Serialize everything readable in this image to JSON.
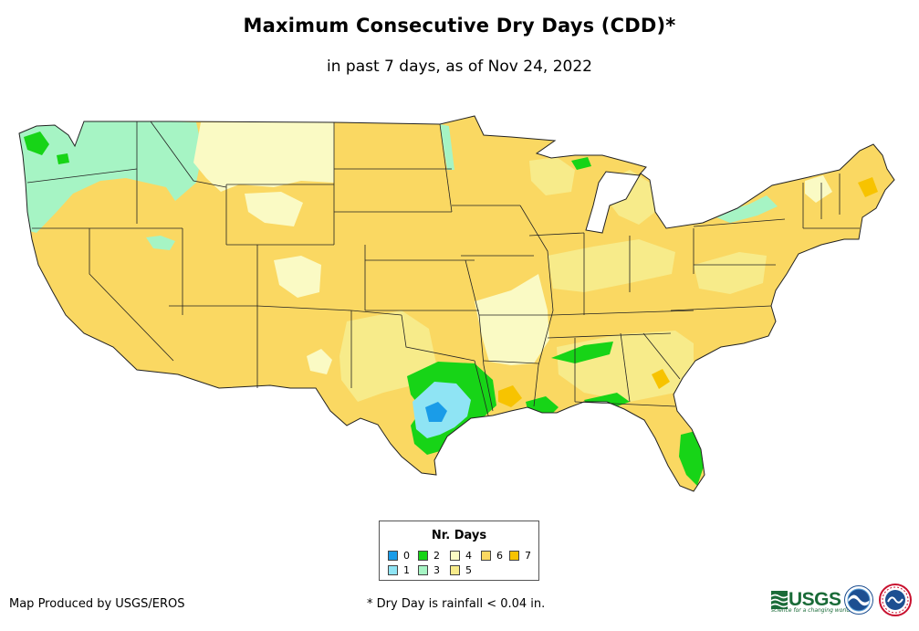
{
  "title": "Maximum Consecutive Dry Days (CDD)*",
  "subtitle": "in past 7 days, as of Nov 24, 2022",
  "legend": {
    "title": "Nr. Days",
    "items": [
      {
        "label": "0",
        "color": "#1a9ce8"
      },
      {
        "label": "1",
        "color": "#8fe4f4"
      },
      {
        "label": "2",
        "color": "#17d417"
      },
      {
        "label": "3",
        "color": "#a6f4c4"
      },
      {
        "label": "4",
        "color": "#fafac4"
      },
      {
        "label": "5",
        "color": "#f7eb8a"
      },
      {
        "label": "6",
        "color": "#fad862"
      },
      {
        "label": "7",
        "color": "#f7c300"
      }
    ]
  },
  "footer": {
    "producer": "Map Produced by USGS/EROS",
    "note": "* Dry Day is rainfall < 0.04 in."
  },
  "logos": {
    "usgs_text": "USGS",
    "usgs_tagline": "science for a changing world"
  },
  "colors": {
    "state_border": "#222222",
    "usgs_green": "#1a6b38"
  },
  "map": {
    "region": "Contiguous United States",
    "dominant_class": "6"
  }
}
